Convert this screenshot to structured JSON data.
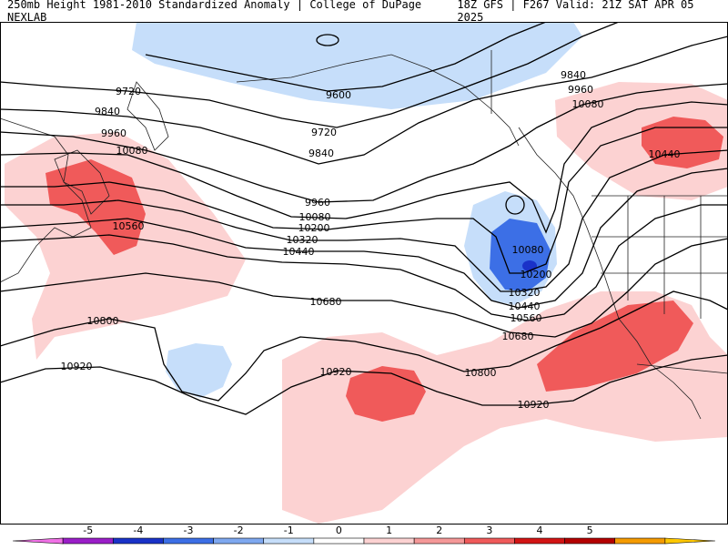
{
  "header": {
    "left": "250mb Height 1981-2010 Standardized Anomaly | College of DuPage NEXLAB",
    "right": "18Z GFS | F267 Valid: 21Z SAT APR 05 2025"
  },
  "contours": [
    {
      "label": "9600"
    },
    {
      "label": "9720"
    },
    {
      "label": "9720"
    },
    {
      "label": "9840"
    },
    {
      "label": "9840"
    },
    {
      "label": "9840"
    },
    {
      "label": "9960"
    },
    {
      "label": "9960"
    },
    {
      "label": "9960"
    },
    {
      "label": "10080"
    },
    {
      "label": "10080"
    },
    {
      "label": "10080"
    },
    {
      "label": "10080"
    },
    {
      "label": "10200"
    },
    {
      "label": "10200"
    },
    {
      "label": "10320"
    },
    {
      "label": "10320"
    },
    {
      "label": "10440"
    },
    {
      "label": "10440"
    },
    {
      "label": "10440"
    },
    {
      "label": "10560"
    },
    {
      "label": "10560"
    },
    {
      "label": "10680"
    },
    {
      "label": "10680"
    },
    {
      "label": "10800"
    },
    {
      "label": "10800"
    },
    {
      "label": "10920"
    },
    {
      "label": "10920"
    },
    {
      "label": "10920"
    }
  ],
  "colorbar": {
    "ticks": [
      "-5",
      "-4",
      "-3",
      "-2",
      "-1",
      "0",
      "1",
      "2",
      "3",
      "4",
      "5"
    ],
    "colors": [
      "#f071e6",
      "#9a1ec8",
      "#1a32c8",
      "#3c6fe6",
      "#7fa8f0",
      "#c6defa",
      "#ffffff",
      "#fcd2d2",
      "#f59898",
      "#f05a5a",
      "#d21414",
      "#b40000",
      "#f59b00",
      "#ffc800"
    ]
  }
}
